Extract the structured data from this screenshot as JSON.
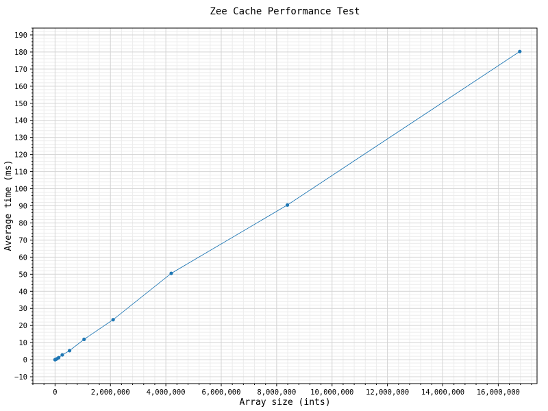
{
  "chart_data": {
    "type": "line",
    "title": "Zee Cache Performance Test",
    "xlabel": "Array size (ints)",
    "ylabel": "Average time (ms)",
    "xlim": [
      -800000,
      17400000
    ],
    "ylim": [
      -14,
      194
    ],
    "x_ticks": [
      0,
      2000000,
      4000000,
      6000000,
      8000000,
      10000000,
      12000000,
      14000000,
      16000000
    ],
    "x_tick_labels": [
      "0",
      "2,000,000",
      "4,000,000",
      "6,000,000",
      "8,000,000",
      "10,000,000",
      "12,000,000",
      "14,000,000",
      "16,000,000"
    ],
    "y_ticks": [
      -10,
      0,
      10,
      20,
      30,
      40,
      50,
      60,
      70,
      80,
      90,
      100,
      110,
      120,
      130,
      140,
      150,
      160,
      170,
      180,
      190
    ],
    "y_tick_labels": [
      "−10",
      "0",
      "10",
      "20",
      "30",
      "40",
      "50",
      "60",
      "70",
      "80",
      "90",
      "100",
      "110",
      "120",
      "130",
      "140",
      "150",
      "160",
      "170",
      "180",
      "190"
    ],
    "grid": true,
    "minor_grid": true,
    "color": "#1f77b4",
    "series": [
      {
        "x": [
          1024,
          4096,
          16384,
          65536,
          131072,
          262144,
          524288,
          1048576,
          2097152,
          4194304,
          8388608,
          16777216
        ],
        "y": [
          0.0,
          0.0,
          0.1,
          0.5,
          1.2,
          2.8,
          5.3,
          11.9,
          23.4,
          50.5,
          90.5,
          180.3
        ]
      }
    ]
  }
}
